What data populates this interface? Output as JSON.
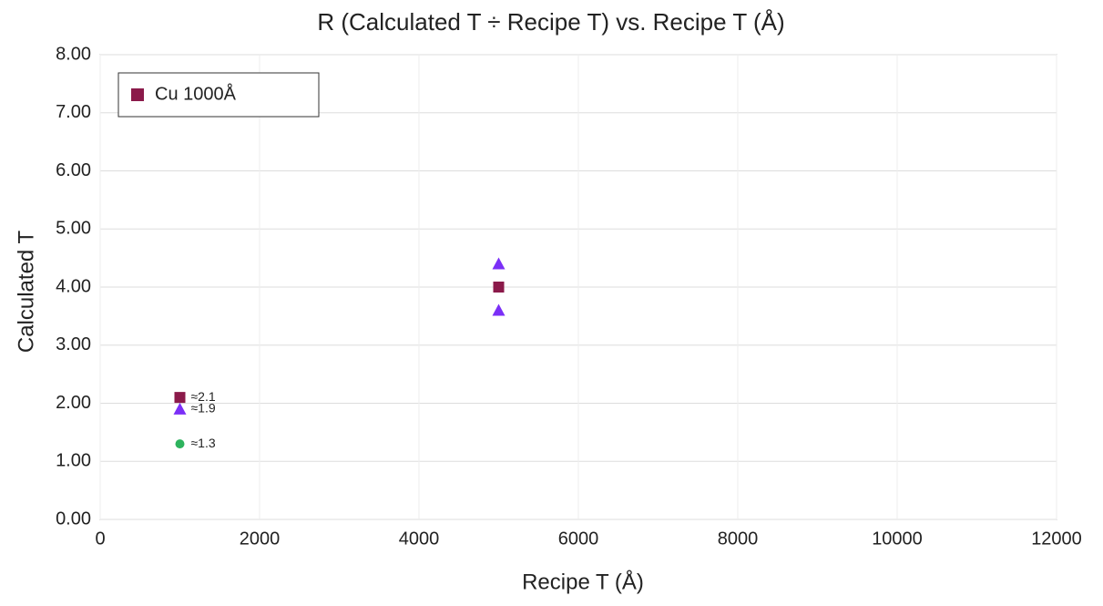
{
  "chart_data": {
    "type": "scatter",
    "title": "R (Calculated T ÷ Recipe T) vs. Recipe T (Å)",
    "x_label": "Recipe T (Å)",
    "y_label": "Calculated T",
    "xlim": [
      0,
      12000
    ],
    "xticks": [
      0,
      2000,
      4000,
      6000,
      8000,
      10000,
      12000
    ],
    "ylim": [
      0,
      8
    ],
    "yticks": [
      {
        "value": 0,
        "label": "0.00"
      },
      {
        "value": 1,
        "label": "1.00"
      },
      {
        "value": 2,
        "label": "2.00"
      },
      {
        "value": 3,
        "label": "3.00"
      },
      {
        "value": 4,
        "label": "4.00"
      },
      {
        "value": 5,
        "label": "5.00"
      },
      {
        "value": 6,
        "label": "6.00"
      },
      {
        "value": 7,
        "label": "7.00"
      },
      {
        "value": 8,
        "label": "8.00"
      }
    ],
    "grid": true,
    "legend": "top-left",
    "series": [
      {
        "name": "Cu 1000Å",
        "color": "#8b1a4a",
        "marker": "square",
        "x": [
          1000,
          5000
        ],
        "values": [
          2.1,
          4.0
        ]
      },
      {
        "color": "#7b2ff7",
        "marker": "triangle",
        "x": [
          5000,
          5000,
          1000
        ],
        "values": [
          4.4,
          3.6,
          1.9
        ]
      },
      {
        "color": "#2db35d",
        "marker": "circle",
        "x": [
          1000
        ],
        "values": [
          1.3
        ]
      }
    ],
    "annotations": [
      {
        "text": "≈2.1",
        "x": 1000,
        "y": 2.1
      },
      {
        "text": "≈1.9",
        "x": 1000,
        "y": 1.9
      },
      {
        "text": "≈1.3",
        "x": 1000,
        "y": 1.3
      }
    ]
  }
}
